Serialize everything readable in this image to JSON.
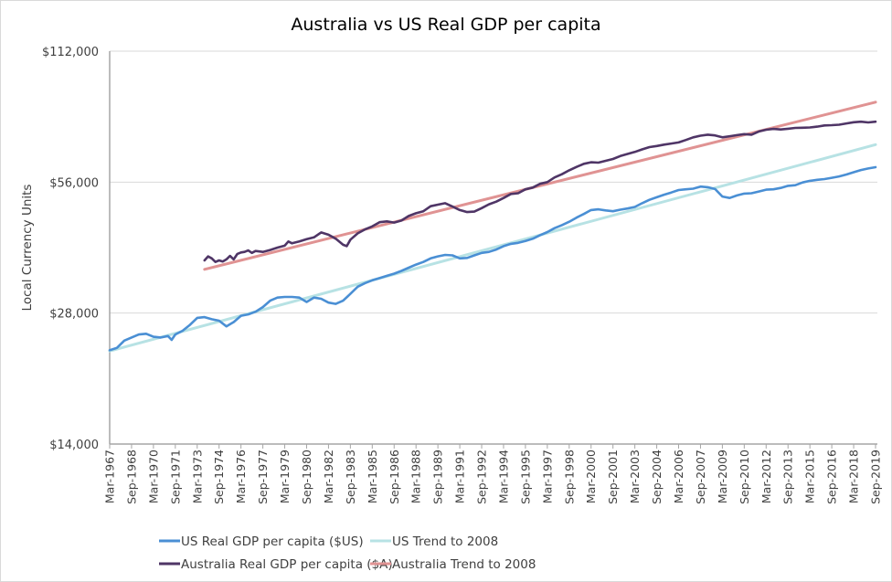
{
  "chart_data": {
    "type": "line",
    "title": "Australia vs US Real GDP per capita",
    "xlabel": "",
    "ylabel": "Local Currency Units",
    "yscale": "log",
    "ylim": [
      14000,
      112000
    ],
    "yticks": [
      14000,
      28000,
      56000,
      112000
    ],
    "ytick_labels": [
      "$14,000",
      "$28,000",
      "$56,000",
      "$112,000"
    ],
    "grid": "horizontal",
    "legend_position": "bottom",
    "x_start": "Mar-1967",
    "x_end": "Sep-2019",
    "x_frequency": "quarterly",
    "xtick_labels": [
      "Mar-1967",
      "Sep-1968",
      "Mar-1970",
      "Sep-1971",
      "Mar-1973",
      "Sep-1974",
      "Mar-1976",
      "Sep-1977",
      "Mar-1979",
      "Sep-1980",
      "Mar-1982",
      "Sep-1983",
      "Mar-1985",
      "Sep-1986",
      "Mar-1988",
      "Sep-1989",
      "Mar-1991",
      "Sep-1992",
      "Mar-1994",
      "Sep-1995",
      "Mar-1997",
      "Sep-1998",
      "Mar-2000",
      "Sep-2001",
      "Mar-2003",
      "Sep-2004",
      "Mar-2006",
      "Sep-2007",
      "Mar-2009",
      "Sep-2010",
      "Mar-2012",
      "Sep-2013",
      "Mar-2015",
      "Sep-2016",
      "Mar-2018",
      "Sep-2019"
    ],
    "series": [
      {
        "name": "US Real GDP per capita ($US)",
        "color": "#4a8fd4",
        "points": [
          [
            "Mar-1967",
            23000
          ],
          [
            "Sep-1967",
            23300
          ],
          [
            "Mar-1968",
            24200
          ],
          [
            "Sep-1968",
            24600
          ],
          [
            "Mar-1969",
            25000
          ],
          [
            "Sep-1969",
            25100
          ],
          [
            "Mar-1970",
            24700
          ],
          [
            "Sep-1970",
            24600
          ],
          [
            "Mar-1971",
            24800
          ],
          [
            "Jun-1971",
            24300
          ],
          [
            "Sep-1971",
            25000
          ],
          [
            "Mar-1972",
            25500
          ],
          [
            "Sep-1972",
            26300
          ],
          [
            "Mar-1973",
            27300
          ],
          [
            "Sep-1973",
            27400
          ],
          [
            "Mar-1974",
            27100
          ],
          [
            "Sep-1974",
            26900
          ],
          [
            "Mar-1975",
            26100
          ],
          [
            "Sep-1975",
            26700
          ],
          [
            "Mar-1976",
            27600
          ],
          [
            "Sep-1976",
            27800
          ],
          [
            "Mar-1977",
            28200
          ],
          [
            "Sep-1977",
            28900
          ],
          [
            "Mar-1978",
            29900
          ],
          [
            "Sep-1978",
            30400
          ],
          [
            "Mar-1979",
            30500
          ],
          [
            "Sep-1979",
            30500
          ],
          [
            "Mar-1980",
            30400
          ],
          [
            "Sep-1980",
            29700
          ],
          [
            "Mar-1981",
            30400
          ],
          [
            "Sep-1981",
            30200
          ],
          [
            "Mar-1982",
            29600
          ],
          [
            "Sep-1982",
            29400
          ],
          [
            "Mar-1983",
            29900
          ],
          [
            "Sep-1983",
            31000
          ],
          [
            "Mar-1984",
            32200
          ],
          [
            "Sep-1984",
            32800
          ],
          [
            "Mar-1985",
            33300
          ],
          [
            "Sep-1985",
            33700
          ],
          [
            "Mar-1986",
            34100
          ],
          [
            "Sep-1986",
            34500
          ],
          [
            "Mar-1987",
            35000
          ],
          [
            "Sep-1987",
            35600
          ],
          [
            "Mar-1988",
            36200
          ],
          [
            "Sep-1988",
            36700
          ],
          [
            "Mar-1989",
            37400
          ],
          [
            "Sep-1989",
            37800
          ],
          [
            "Mar-1990",
            38100
          ],
          [
            "Sep-1990",
            38000
          ],
          [
            "Mar-1991",
            37400
          ],
          [
            "Sep-1991",
            37500
          ],
          [
            "Mar-1992",
            38000
          ],
          [
            "Sep-1992",
            38500
          ],
          [
            "Mar-1993",
            38700
          ],
          [
            "Sep-1993",
            39200
          ],
          [
            "Mar-1994",
            39900
          ],
          [
            "Sep-1994",
            40400
          ],
          [
            "Mar-1995",
            40600
          ],
          [
            "Sep-1995",
            41000
          ],
          [
            "Mar-1996",
            41500
          ],
          [
            "Sep-1996",
            42300
          ],
          [
            "Mar-1997",
            43000
          ],
          [
            "Sep-1997",
            43900
          ],
          [
            "Mar-1998",
            44600
          ],
          [
            "Sep-1998",
            45400
          ],
          [
            "Mar-1999",
            46400
          ],
          [
            "Sep-1999",
            47300
          ],
          [
            "Mar-2000",
            48300
          ],
          [
            "Sep-2000",
            48500
          ],
          [
            "Mar-2001",
            48200
          ],
          [
            "Sep-2001",
            48000
          ],
          [
            "Mar-2002",
            48400
          ],
          [
            "Sep-2002",
            48700
          ],
          [
            "Mar-2003",
            49100
          ],
          [
            "Sep-2003",
            50100
          ],
          [
            "Mar-2004",
            51000
          ],
          [
            "Sep-2004",
            51700
          ],
          [
            "Mar-2005",
            52400
          ],
          [
            "Sep-2005",
            53000
          ],
          [
            "Mar-2006",
            53700
          ],
          [
            "Sep-2006",
            53900
          ],
          [
            "Mar-2007",
            54100
          ],
          [
            "Sep-2007",
            54700
          ],
          [
            "Mar-2008",
            54500
          ],
          [
            "Sep-2008",
            54000
          ],
          [
            "Mar-2009",
            51900
          ],
          [
            "Sep-2009",
            51500
          ],
          [
            "Mar-2010",
            52200
          ],
          [
            "Sep-2010",
            52700
          ],
          [
            "Mar-2011",
            52800
          ],
          [
            "Sep-2011",
            53300
          ],
          [
            "Mar-2012",
            53800
          ],
          [
            "Sep-2012",
            53900
          ],
          [
            "Mar-2013",
            54300
          ],
          [
            "Sep-2013",
            54900
          ],
          [
            "Mar-2014",
            55100
          ],
          [
            "Sep-2014",
            55900
          ],
          [
            "Mar-2015",
            56400
          ],
          [
            "Sep-2015",
            56700
          ],
          [
            "Mar-2016",
            56900
          ],
          [
            "Sep-2016",
            57300
          ],
          [
            "Mar-2017",
            57700
          ],
          [
            "Sep-2017",
            58300
          ],
          [
            "Mar-2018",
            59000
          ],
          [
            "Sep-2018",
            59700
          ],
          [
            "Mar-2019",
            60200
          ],
          [
            "Sep-2019",
            60600
          ]
        ]
      },
      {
        "name": "US Trend to 2008",
        "color": "#b7e2e4",
        "points": [
          [
            "Mar-1967",
            22900
          ],
          [
            "Sep-2019",
            68300
          ]
        ]
      },
      {
        "name": "Australia Real GDP per capita ($A)",
        "color": "#4f3566",
        "points": [
          [
            "Sep-1973",
            37000
          ],
          [
            "Dec-1973",
            37800
          ],
          [
            "Mar-1974",
            37400
          ],
          [
            "Jun-1974",
            36700
          ],
          [
            "Sep-1974",
            37000
          ],
          [
            "Dec-1974",
            36800
          ],
          [
            "Mar-1975",
            37200
          ],
          [
            "Jun-1975",
            37900
          ],
          [
            "Sep-1975",
            37200
          ],
          [
            "Dec-1975",
            38300
          ],
          [
            "Mar-1976",
            38600
          ],
          [
            "Jun-1976",
            38700
          ],
          [
            "Sep-1976",
            39000
          ],
          [
            "Dec-1976",
            38500
          ],
          [
            "Mar-1977",
            38900
          ],
          [
            "Sep-1977",
            38700
          ],
          [
            "Mar-1978",
            39100
          ],
          [
            "Sep-1978",
            39600
          ],
          [
            "Mar-1979",
            40000
          ],
          [
            "Jun-1979",
            40900
          ],
          [
            "Sep-1979",
            40500
          ],
          [
            "Mar-1980",
            40900
          ],
          [
            "Sep-1980",
            41400
          ],
          [
            "Mar-1981",
            41800
          ],
          [
            "Sep-1981",
            42900
          ],
          [
            "Mar-1982",
            42400
          ],
          [
            "Sep-1982",
            41500
          ],
          [
            "Mar-1983",
            40200
          ],
          [
            "Jun-1983",
            39900
          ],
          [
            "Sep-1983",
            41300
          ],
          [
            "Mar-1984",
            42700
          ],
          [
            "Sep-1984",
            43600
          ],
          [
            "Mar-1985",
            44300
          ],
          [
            "Sep-1985",
            45300
          ],
          [
            "Mar-1986",
            45500
          ],
          [
            "Sep-1986",
            45200
          ],
          [
            "Mar-1987",
            45700
          ],
          [
            "Sep-1987",
            46800
          ],
          [
            "Mar-1988",
            47500
          ],
          [
            "Sep-1988",
            48000
          ],
          [
            "Mar-1989",
            49300
          ],
          [
            "Sep-1989",
            49700
          ],
          [
            "Mar-1990",
            50100
          ],
          [
            "Sep-1990",
            49200
          ],
          [
            "Mar-1991",
            48300
          ],
          [
            "Sep-1991",
            47800
          ],
          [
            "Mar-1992",
            47900
          ],
          [
            "Sep-1992",
            48800
          ],
          [
            "Mar-1993",
            49800
          ],
          [
            "Sep-1993",
            50500
          ],
          [
            "Mar-1994",
            51500
          ],
          [
            "Sep-1994",
            52600
          ],
          [
            "Mar-1995",
            52800
          ],
          [
            "Sep-1995",
            53900
          ],
          [
            "Mar-1996",
            54400
          ],
          [
            "Sep-1996",
            55500
          ],
          [
            "Mar-1997",
            56000
          ],
          [
            "Sep-1997",
            57400
          ],
          [
            "Mar-1998",
            58400
          ],
          [
            "Sep-1998",
            59600
          ],
          [
            "Mar-1999",
            60700
          ],
          [
            "Sep-1999",
            61700
          ],
          [
            "Mar-2000",
            62200
          ],
          [
            "Sep-2000",
            62100
          ],
          [
            "Mar-2001",
            62700
          ],
          [
            "Sep-2001",
            63300
          ],
          [
            "Mar-2002",
            64300
          ],
          [
            "Sep-2002",
            65000
          ],
          [
            "Mar-2003",
            65700
          ],
          [
            "Sep-2003",
            66600
          ],
          [
            "Mar-2004",
            67400
          ],
          [
            "Sep-2004",
            67800
          ],
          [
            "Mar-2005",
            68300
          ],
          [
            "Sep-2005",
            68700
          ],
          [
            "Mar-2006",
            69100
          ],
          [
            "Sep-2006",
            70000
          ],
          [
            "Mar-2007",
            71000
          ],
          [
            "Sep-2007",
            71600
          ],
          [
            "Mar-2008",
            72000
          ],
          [
            "Sep-2008",
            71700
          ],
          [
            "Mar-2009",
            71000
          ],
          [
            "Sep-2009",
            71400
          ],
          [
            "Mar-2010",
            71800
          ],
          [
            "Sep-2010",
            72200
          ],
          [
            "Mar-2011",
            72000
          ],
          [
            "Sep-2011",
            73200
          ],
          [
            "Mar-2012",
            73900
          ],
          [
            "Sep-2012",
            74200
          ],
          [
            "Mar-2013",
            74000
          ],
          [
            "Sep-2013",
            74300
          ],
          [
            "Mar-2014",
            74600
          ],
          [
            "Sep-2014",
            74700
          ],
          [
            "Mar-2015",
            74800
          ],
          [
            "Sep-2015",
            75100
          ],
          [
            "Mar-2016",
            75600
          ],
          [
            "Sep-2016",
            75700
          ],
          [
            "Mar-2017",
            75900
          ],
          [
            "Sep-2017",
            76400
          ],
          [
            "Mar-2018",
            76900
          ],
          [
            "Sep-2018",
            77100
          ],
          [
            "Mar-2019",
            76800
          ],
          [
            "Sep-2019",
            77100
          ]
        ]
      },
      {
        "name": "Australia Trend to 2008",
        "color": "#e09393",
        "points": [
          [
            "Sep-1973",
            35300
          ],
          [
            "Sep-2019",
            85500
          ]
        ]
      }
    ]
  }
}
